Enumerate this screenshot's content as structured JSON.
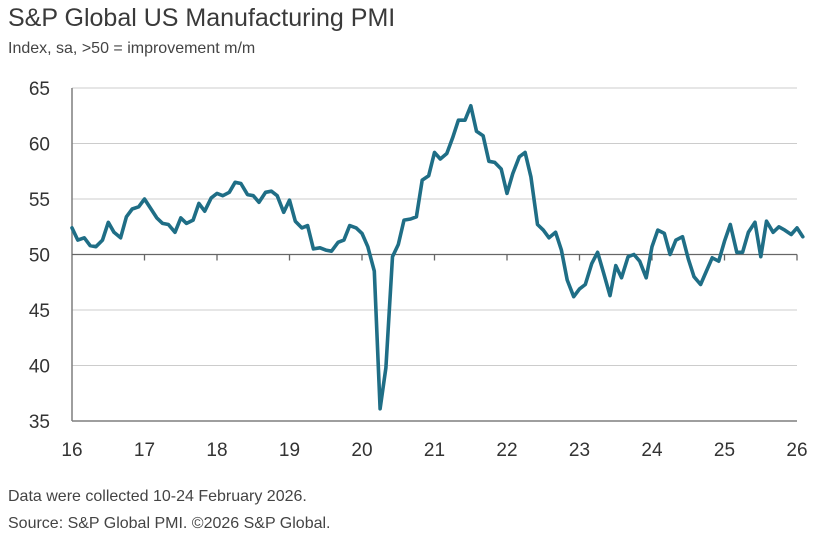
{
  "header": {
    "title": "S&P Global US Manufacturing PMI",
    "subtitle": "Index, sa, >50 = improvement m/m"
  },
  "footer": {
    "note": "Data were collected 10-24 February 2026.",
    "source": "Source: S&P Global PMI. ©2026 S&P Global."
  },
  "colors": {
    "line": "#1f6e86",
    "axis": "#7f7f7f",
    "grid": "#cccccc"
  },
  "chart_data": {
    "type": "line",
    "title": "S&P Global US Manufacturing PMI",
    "subtitle": "Index, sa, >50 = improvement m/m",
    "grid": "horizontal",
    "reference_line": 50,
    "ylim": [
      35,
      65
    ],
    "yticks": [
      35,
      40,
      45,
      50,
      55,
      60,
      65
    ],
    "xlim": [
      2016.0,
      2026.0
    ],
    "xticks": [
      {
        "value": 2016,
        "label": "16"
      },
      {
        "value": 2017,
        "label": "17"
      },
      {
        "value": 2018,
        "label": "18"
      },
      {
        "value": 2019,
        "label": "19"
      },
      {
        "value": 2020,
        "label": "20"
      },
      {
        "value": 2021,
        "label": "21"
      },
      {
        "value": 2022,
        "label": "22"
      },
      {
        "value": 2023,
        "label": "23"
      },
      {
        "value": 2024,
        "label": "24"
      },
      {
        "value": 2025,
        "label": "25"
      },
      {
        "value": 2026,
        "label": "26"
      }
    ],
    "series": [
      {
        "points": [
          [
            2016.0,
            52.4
          ],
          [
            2016.08,
            51.3
          ],
          [
            2016.17,
            51.5
          ],
          [
            2016.25,
            50.8
          ],
          [
            2016.33,
            50.7
          ],
          [
            2016.42,
            51.3
          ],
          [
            2016.5,
            52.9
          ],
          [
            2016.58,
            52.0
          ],
          [
            2016.67,
            51.5
          ],
          [
            2016.75,
            53.4
          ],
          [
            2016.83,
            54.1
          ],
          [
            2016.92,
            54.3
          ],
          [
            2017.0,
            55.0
          ],
          [
            2017.08,
            54.2
          ],
          [
            2017.17,
            53.3
          ],
          [
            2017.25,
            52.8
          ],
          [
            2017.33,
            52.7
          ],
          [
            2017.42,
            52.0
          ],
          [
            2017.5,
            53.3
          ],
          [
            2017.58,
            52.8
          ],
          [
            2017.67,
            53.1
          ],
          [
            2017.75,
            54.6
          ],
          [
            2017.83,
            53.9
          ],
          [
            2017.92,
            55.1
          ],
          [
            2018.0,
            55.5
          ],
          [
            2018.08,
            55.3
          ],
          [
            2018.17,
            55.6
          ],
          [
            2018.25,
            56.5
          ],
          [
            2018.33,
            56.4
          ],
          [
            2018.42,
            55.4
          ],
          [
            2018.5,
            55.3
          ],
          [
            2018.58,
            54.7
          ],
          [
            2018.67,
            55.6
          ],
          [
            2018.75,
            55.7
          ],
          [
            2018.83,
            55.3
          ],
          [
            2018.92,
            53.8
          ],
          [
            2019.0,
            54.9
          ],
          [
            2019.08,
            53.0
          ],
          [
            2019.17,
            52.4
          ],
          [
            2019.25,
            52.6
          ],
          [
            2019.33,
            50.5
          ],
          [
            2019.42,
            50.6
          ],
          [
            2019.5,
            50.4
          ],
          [
            2019.58,
            50.3
          ],
          [
            2019.67,
            51.1
          ],
          [
            2019.75,
            51.3
          ],
          [
            2019.83,
            52.6
          ],
          [
            2019.92,
            52.4
          ],
          [
            2020.0,
            51.9
          ],
          [
            2020.08,
            50.7
          ],
          [
            2020.17,
            48.5
          ],
          [
            2020.25,
            36.1
          ],
          [
            2020.33,
            39.8
          ],
          [
            2020.42,
            49.8
          ],
          [
            2020.5,
            50.9
          ],
          [
            2020.58,
            53.1
          ],
          [
            2020.67,
            53.2
          ],
          [
            2020.75,
            53.4
          ],
          [
            2020.83,
            56.7
          ],
          [
            2020.92,
            57.1
          ],
          [
            2021.0,
            59.2
          ],
          [
            2021.08,
            58.6
          ],
          [
            2021.17,
            59.1
          ],
          [
            2021.25,
            60.5
          ],
          [
            2021.33,
            62.1
          ],
          [
            2021.42,
            62.1
          ],
          [
            2021.5,
            63.4
          ],
          [
            2021.58,
            61.1
          ],
          [
            2021.67,
            60.7
          ],
          [
            2021.75,
            58.4
          ],
          [
            2021.83,
            58.3
          ],
          [
            2021.92,
            57.7
          ],
          [
            2022.0,
            55.5
          ],
          [
            2022.08,
            57.3
          ],
          [
            2022.17,
            58.8
          ],
          [
            2022.25,
            59.2
          ],
          [
            2022.33,
            57.0
          ],
          [
            2022.42,
            52.7
          ],
          [
            2022.5,
            52.2
          ],
          [
            2022.58,
            51.5
          ],
          [
            2022.67,
            52.0
          ],
          [
            2022.75,
            50.4
          ],
          [
            2022.83,
            47.7
          ],
          [
            2022.92,
            46.2
          ],
          [
            2023.0,
            46.9
          ],
          [
            2023.08,
            47.3
          ],
          [
            2023.17,
            49.2
          ],
          [
            2023.25,
            50.2
          ],
          [
            2023.33,
            48.4
          ],
          [
            2023.42,
            46.3
          ],
          [
            2023.5,
            49.0
          ],
          [
            2023.58,
            47.9
          ],
          [
            2023.67,
            49.8
          ],
          [
            2023.75,
            50.0
          ],
          [
            2023.83,
            49.4
          ],
          [
            2023.92,
            47.9
          ],
          [
            2024.0,
            50.7
          ],
          [
            2024.08,
            52.2
          ],
          [
            2024.17,
            51.9
          ],
          [
            2024.25,
            50.0
          ],
          [
            2024.33,
            51.3
          ],
          [
            2024.42,
            51.6
          ],
          [
            2024.5,
            49.6
          ],
          [
            2024.58,
            48.0
          ],
          [
            2024.67,
            47.3
          ],
          [
            2024.75,
            48.5
          ],
          [
            2024.83,
            49.7
          ],
          [
            2024.92,
            49.4
          ],
          [
            2025.0,
            51.2
          ],
          [
            2025.08,
            52.7
          ],
          [
            2025.17,
            50.2
          ],
          [
            2025.25,
            50.2
          ],
          [
            2025.33,
            52.0
          ],
          [
            2025.42,
            52.9
          ],
          [
            2025.5,
            49.8
          ],
          [
            2025.58,
            53.0
          ],
          [
            2025.67,
            52.0
          ],
          [
            2025.75,
            52.5
          ],
          [
            2025.83,
            52.2
          ],
          [
            2025.92,
            51.8
          ],
          [
            2026.0,
            52.4
          ],
          [
            2026.08,
            51.6
          ]
        ]
      }
    ]
  }
}
